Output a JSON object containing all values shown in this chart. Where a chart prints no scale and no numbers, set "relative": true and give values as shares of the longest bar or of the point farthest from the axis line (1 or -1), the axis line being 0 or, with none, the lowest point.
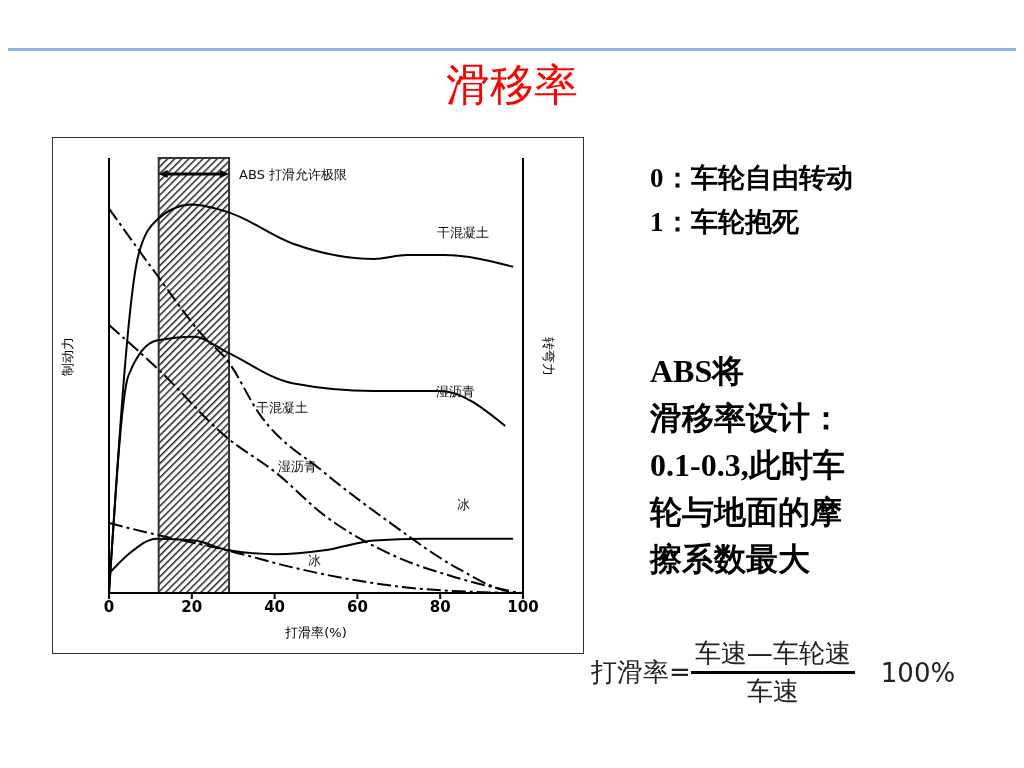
{
  "chart_data": {
    "type": "line",
    "title": "滑移率",
    "xlabel": "打滑率(%)",
    "ylabel": "制动力",
    "y2label": "转弯力",
    "relative": true,
    "xlim": [
      0,
      100
    ],
    "xticks": [
      0,
      20,
      40,
      60,
      80,
      100
    ],
    "marker": "none",
    "bands": [
      {
        "axis": "x",
        "from": 12,
        "to": 29,
        "label": "ABS 打滑允许极限",
        "color": "#333333"
      }
    ],
    "series": [
      {
        "name": "干混凝土",
        "color": "#000000",
        "line_style": "solid",
        "x": [
          0,
          7.1,
          11.5,
          19.8,
          28.9,
          44.3,
          64,
          72,
          81,
          97.6
        ],
        "values": [
          0,
          0.87,
          0.96,
          1.0,
          0.98,
          0.9,
          0.86,
          0.87,
          0.87,
          0.84
        ]
      },
      {
        "name": "湿沥青",
        "color": "#000000",
        "line_style": "solid",
        "x": [
          0,
          4.7,
          11.5,
          20.6,
          28.5,
          44.3,
          64,
          70.4,
          80,
          95.7
        ],
        "values": [
          0,
          0.56,
          0.65,
          0.66,
          0.62,
          0.54,
          0.52,
          0.52,
          0.52,
          0.43
        ]
      },
      {
        "name": "冰",
        "color": "#000000",
        "line_style": "solid",
        "x": [
          0,
          4.7,
          11.5,
          20.6,
          28.9,
          40.3,
          52,
          64,
          76,
          97.6
        ],
        "values": [
          0.05,
          0.1,
          0.14,
          0.135,
          0.11,
          0.1,
          0.11,
          0.135,
          0.14,
          0.14
        ]
      },
      {
        "name": "干混凝土",
        "color": "#000000",
        "line_style": "dashed",
        "x": [
          0,
          11.5,
          22.9,
          28.5,
          36.4,
          52,
          68,
          83.8,
          97,
          100
        ],
        "values": [
          0.99,
          0.82,
          0.66,
          0.6,
          0.46,
          0.31,
          0.18,
          0.066,
          0.003,
          0
        ]
      },
      {
        "name": "湿沥青",
        "color": "#000000",
        "line_style": "dashed",
        "x": [
          0,
          11.5,
          28.5,
          40.3,
          52,
          68,
          83.8,
          99
        ],
        "values": [
          0.69,
          0.58,
          0.4,
          0.31,
          0.2,
          0.1,
          0.04,
          0
        ]
      },
      {
        "name": "冰",
        "color": "#000000",
        "line_style": "dashed",
        "x": [
          0,
          11.5,
          28.5,
          44.3,
          60,
          76,
          99
        ],
        "values": [
          0.18,
          0.15,
          0.11,
          0.066,
          0.032,
          0.01,
          0
        ]
      }
    ],
    "annotations": [
      "0：车轮自由转动",
      "1：车轮抱死",
      "ABS将",
      "滑移率设计：",
      "0.1-0.3,此时车",
      "轮与地面的摩",
      "擦系数最大",
      "打滑率=",
      "车速—车轮速",
      "车速",
      "100%"
    ]
  }
}
